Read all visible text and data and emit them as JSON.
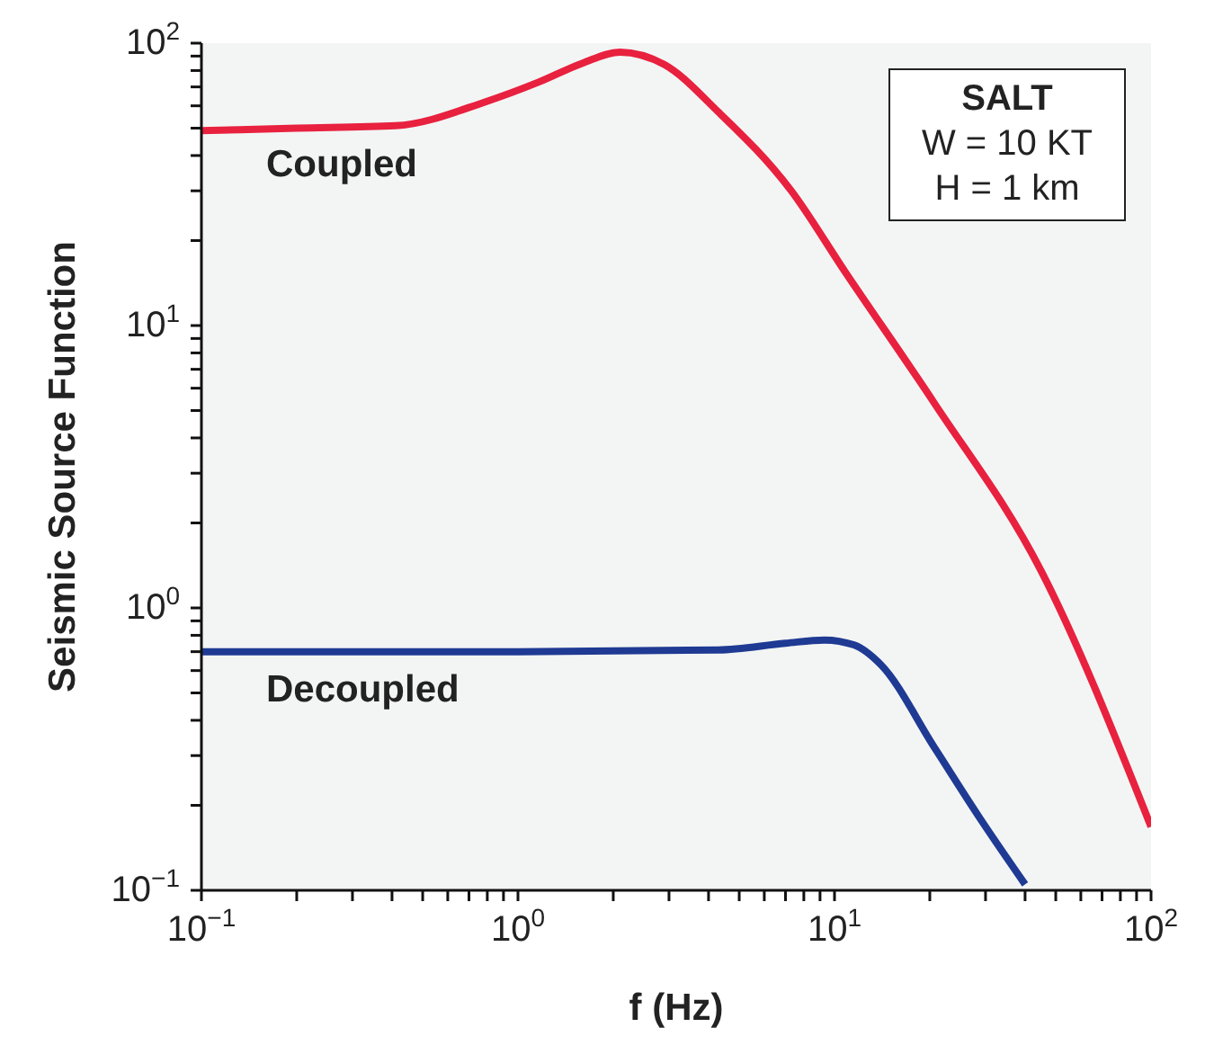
{
  "chart_data": {
    "type": "line",
    "xlabel": "f (Hz)",
    "ylabel": "Seismic Source Function",
    "log": "xy",
    "marker": "none",
    "line_style": "solid",
    "xlim": [
      0.1,
      100
    ],
    "ylim": [
      0.1,
      100
    ],
    "xticks": [
      {
        "value": 0.1,
        "label": "10$^{−1}$"
      },
      {
        "value": 0.2,
        "label": null
      },
      {
        "value": 0.3,
        "label": null
      },
      {
        "value": 0.4,
        "label": null
      },
      {
        "value": 0.5,
        "label": null
      },
      {
        "value": 0.6,
        "label": null
      },
      {
        "value": 0.7,
        "label": null
      },
      {
        "value": 0.8,
        "label": null
      },
      {
        "value": 0.9,
        "label": null
      },
      {
        "value": 1,
        "label": "10$^{0}$"
      },
      {
        "value": 2,
        "label": null
      },
      {
        "value": 3,
        "label": null
      },
      {
        "value": 4,
        "label": null
      },
      {
        "value": 5,
        "label": null
      },
      {
        "value": 6,
        "label": null
      },
      {
        "value": 7,
        "label": null
      },
      {
        "value": 8,
        "label": null
      },
      {
        "value": 9,
        "label": null
      },
      {
        "value": 10,
        "label": "10$^{1}$"
      },
      {
        "value": 20,
        "label": null
      },
      {
        "value": 30,
        "label": null
      },
      {
        "value": 40,
        "label": null
      },
      {
        "value": 50,
        "label": null
      },
      {
        "value": 60,
        "label": null
      },
      {
        "value": 70,
        "label": null
      },
      {
        "value": 80,
        "label": null
      },
      {
        "value": 90,
        "label": null
      },
      {
        "value": 100,
        "label": "10$^{2}$"
      }
    ],
    "yticks": [
      {
        "value": 0.1,
        "label": "10$^{−1}$"
      },
      {
        "value": 0.2,
        "label": null
      },
      {
        "value": 0.3,
        "label": null
      },
      {
        "value": 0.4,
        "label": null
      },
      {
        "value": 0.5,
        "label": null
      },
      {
        "value": 0.6,
        "label": null
      },
      {
        "value": 0.7,
        "label": null
      },
      {
        "value": 0.8,
        "label": null
      },
      {
        "value": 0.9,
        "label": null
      },
      {
        "value": 1,
        "label": "10$^{0}$"
      },
      {
        "value": 2,
        "label": null
      },
      {
        "value": 3,
        "label": null
      },
      {
        "value": 4,
        "label": null
      },
      {
        "value": 5,
        "label": null
      },
      {
        "value": 6,
        "label": null
      },
      {
        "value": 7,
        "label": null
      },
      {
        "value": 8,
        "label": null
      },
      {
        "value": 9,
        "label": null
      },
      {
        "value": 10,
        "label": "10$^{1}$"
      },
      {
        "value": 20,
        "label": null
      },
      {
        "value": 30,
        "label": null
      },
      {
        "value": 40,
        "label": null
      },
      {
        "value": 50,
        "label": null
      },
      {
        "value": 60,
        "label": null
      },
      {
        "value": 70,
        "label": null
      },
      {
        "value": 80,
        "label": null
      },
      {
        "value": 90,
        "label": null
      },
      {
        "value": 100,
        "label": "10$^{2}$"
      }
    ],
    "series": [
      {
        "name": "Coupled",
        "color": "#e8213f",
        "x": [
          0.1,
          0.2,
          0.41,
          0.79,
          1.17,
          1.6,
          2.1,
          2.9,
          4.3,
          7.3,
          10.8,
          20.7,
          45,
          100
        ],
        "values": [
          49,
          50,
          51,
          62,
          73,
          85,
          93,
          84,
          57,
          30,
          15.5,
          5.3,
          1.35,
          0.168
        ]
      },
      {
        "name": "Decoupled",
        "color": "#1f3a93",
        "x": [
          0.1,
          0.5,
          1,
          4.3,
          7,
          9.3,
          11.5,
          14,
          20.7,
          28.8,
          40
        ],
        "values": [
          0.7,
          0.7,
          0.7,
          0.71,
          0.75,
          0.77,
          0.74,
          0.63,
          0.32,
          0.18,
          0.105
        ]
      }
    ],
    "annotations": [
      "SALT",
      "W = 10 KT",
      "H = 1 km"
    ]
  }
}
